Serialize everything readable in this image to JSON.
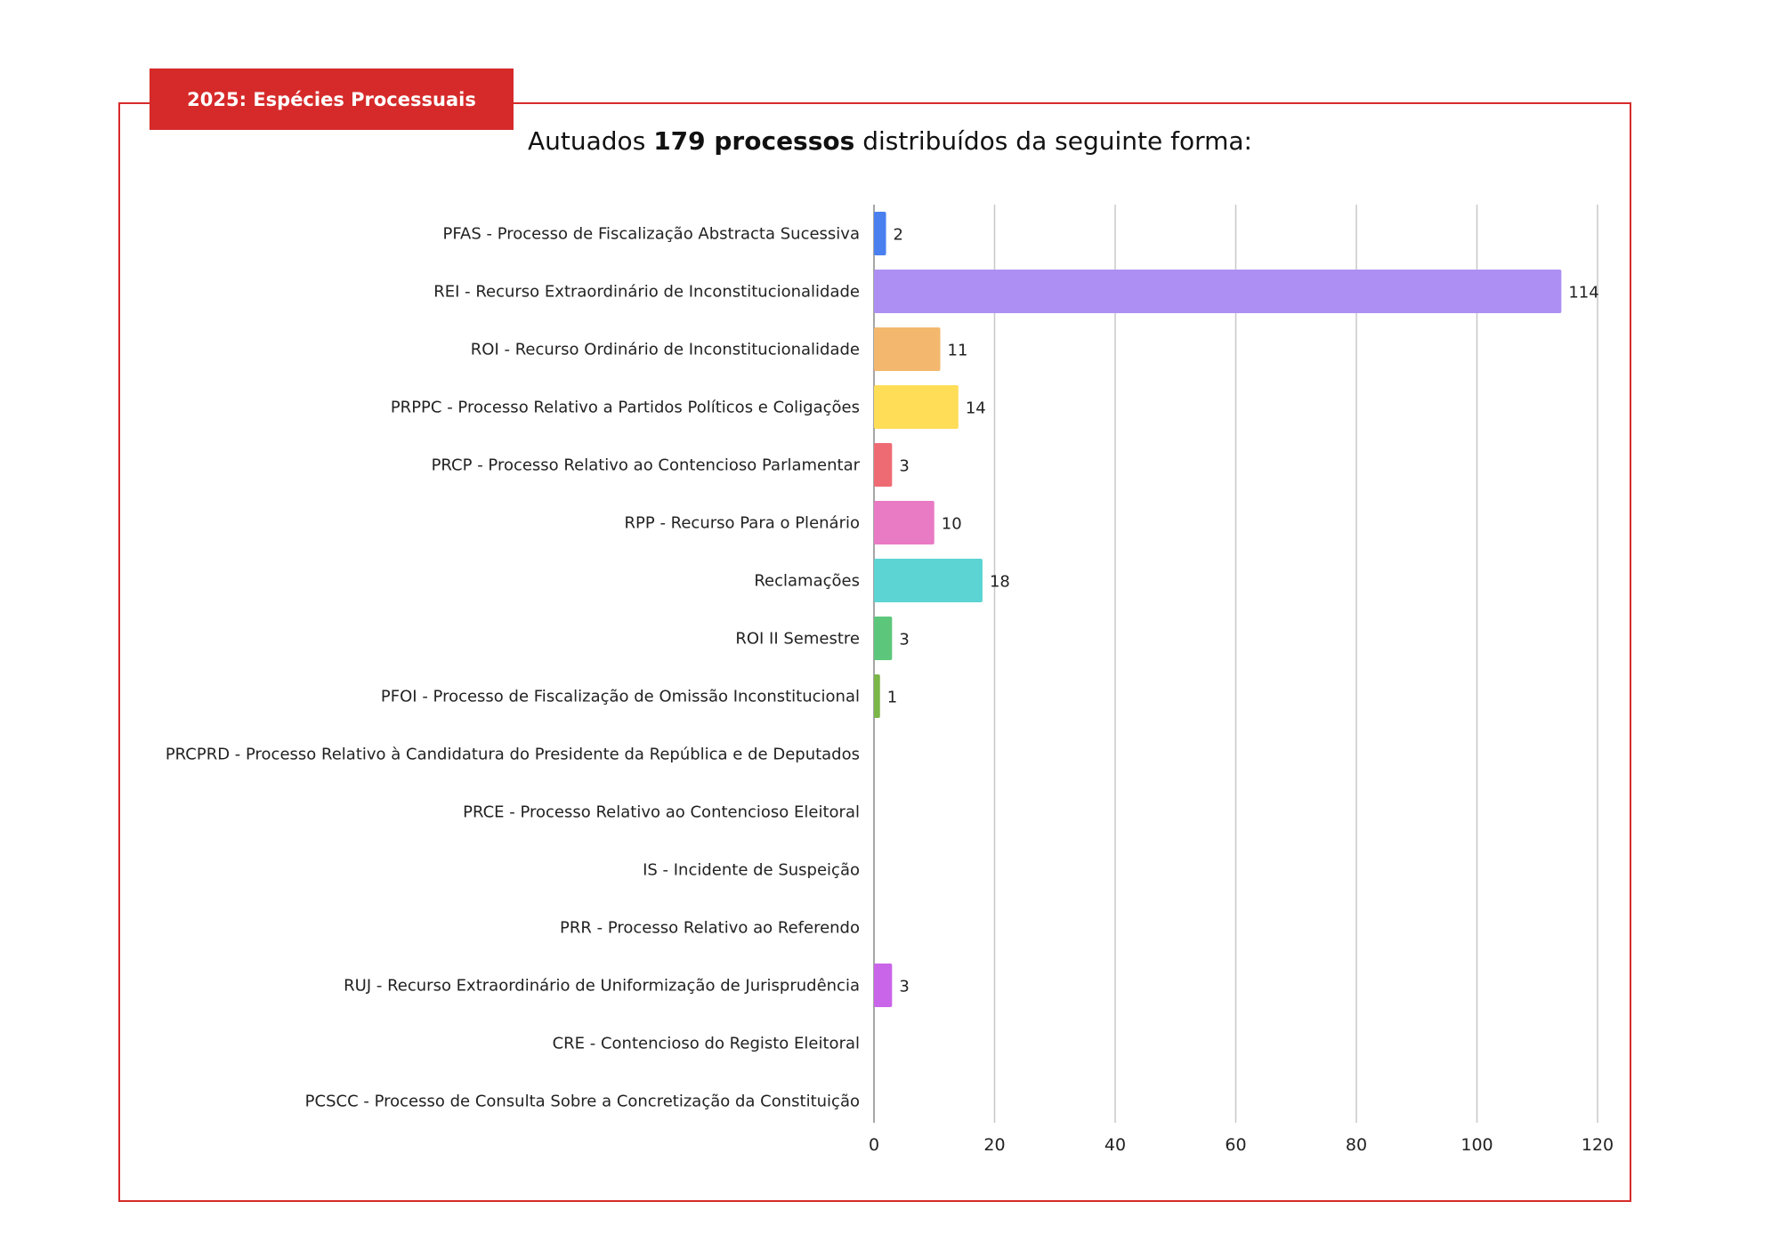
{
  "header": {
    "tab_label": "2025: Espécies Processuais",
    "title_prefix": "Autuados ",
    "title_bold": "179 processos",
    "title_suffix": " distribuídos da seguinte forma:"
  },
  "colors": {
    "accent": "#d62a2a"
  },
  "chart_data": {
    "type": "bar",
    "orientation": "horizontal",
    "title": "Autuados 179 processos distribuídos da seguinte forma:",
    "categories": [
      "PFAS - Processo de Fiscalização Abstracta Sucessiva",
      "REI - Recurso Extraordinário de Inconstitucionalidade",
      "ROI - Recurso Ordinário de Inconstitucionalidade",
      "PRPPC - Processo Relativo a Partidos Políticos e Coligações",
      "PRCP - Processo Relativo ao Contencioso Parlamentar",
      "RPP - Recurso Para o Plenário",
      "Reclamações",
      "ROI II Semestre",
      "PFOI - Processo de Fiscalização de Omissão Inconstitucional",
      "PRCPRD - Processo Relativo à Candidatura do Presidente da República e de Deputados",
      "PRCE - Processo Relativo ao Contencioso Eleitoral",
      "IS - Incidente de Suspeição",
      "PRR - Processo Relativo ao Referendo",
      "RUJ - Recurso Extraordinário de Uniformização de Jurisprudência",
      "CRE - Contencioso do Registo Eleitoral",
      "PCSCC - Processo de Consulta Sobre a Concretização da Constituição"
    ],
    "values": [
      2,
      114,
      11,
      14,
      3,
      10,
      18,
      3,
      1,
      null,
      null,
      null,
      null,
      3,
      null,
      null
    ],
    "bar_colors": [
      "#4a7ff0",
      "#ad8ff3",
      "#f3b86e",
      "#ffdd57",
      "#ef6b73",
      "#e97ac4",
      "#5dd4d4",
      "#5cc77a",
      "#7ab648",
      "#999999",
      "#999999",
      "#999999",
      "#999999",
      "#c965e8",
      "#999999",
      "#999999"
    ],
    "xlim": [
      0,
      120
    ],
    "xticks": [
      0,
      20,
      40,
      60,
      80,
      100,
      120
    ],
    "grid": true,
    "data_labels": true
  }
}
